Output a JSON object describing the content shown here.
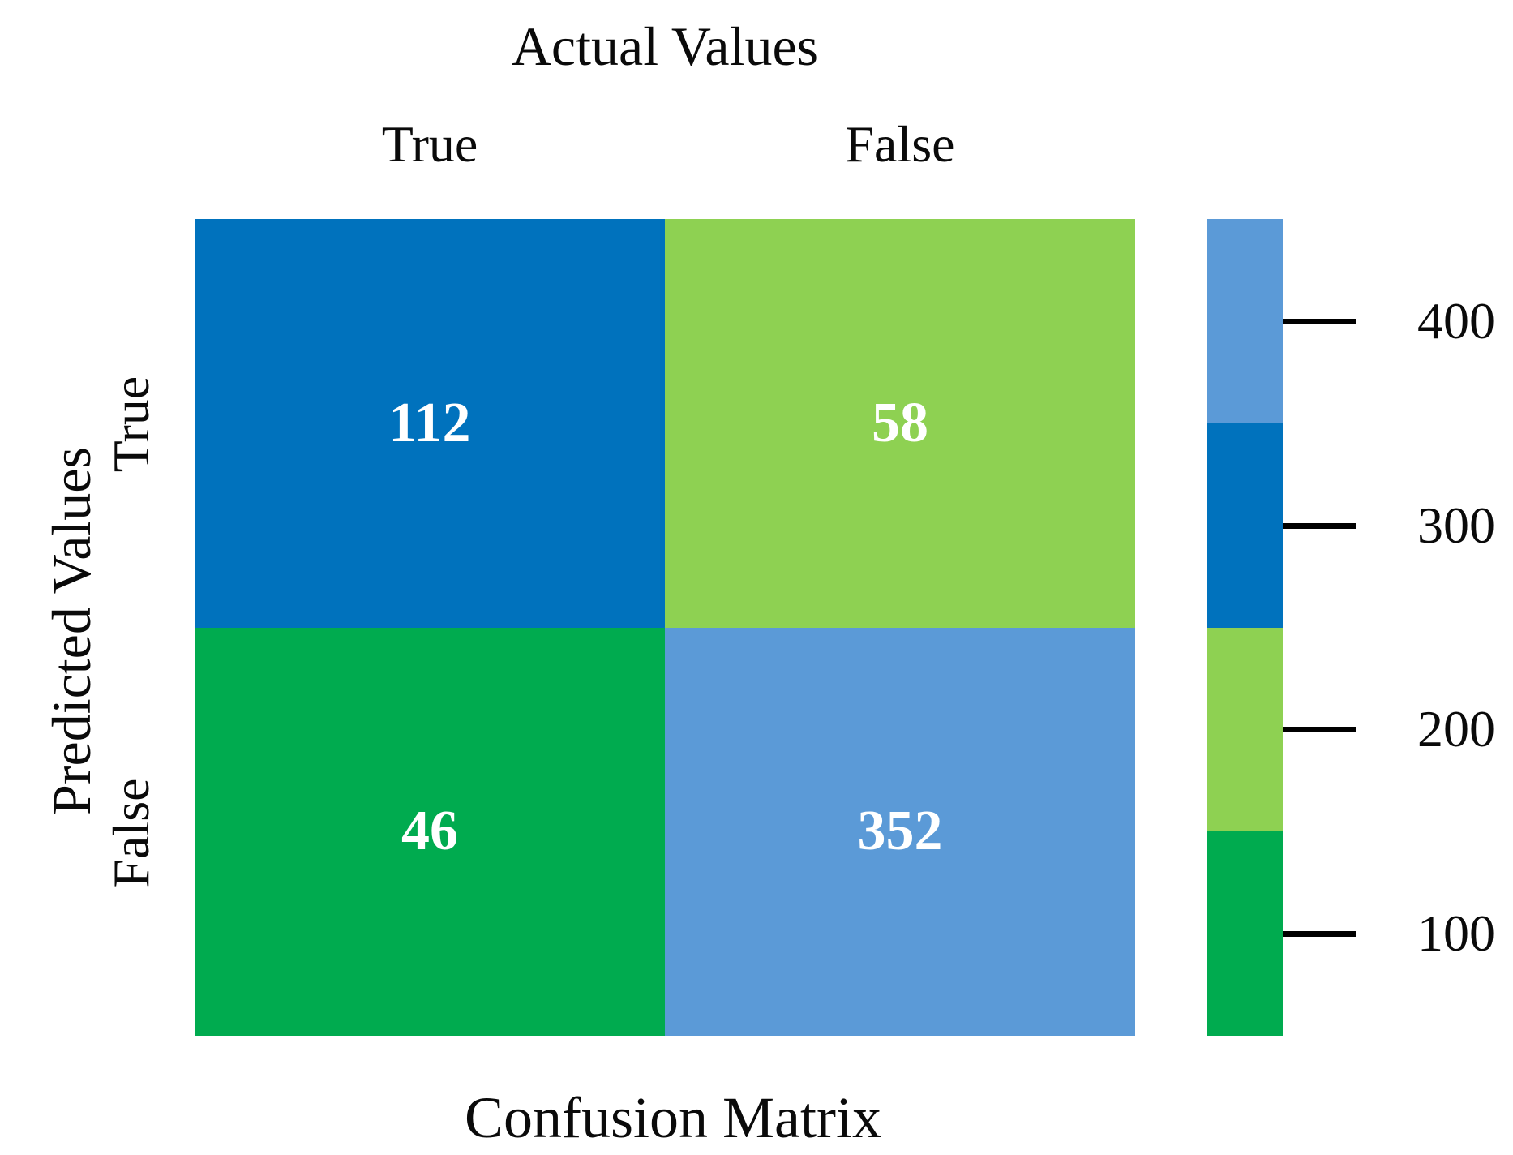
{
  "figure": {
    "top_axis_title": "Actual Values",
    "left_axis_title": "Predicted Values",
    "bottom_caption": "Confusion Matrix"
  },
  "chart_data": {
    "type": "heatmap",
    "title": "Confusion Matrix",
    "x_axis_label": "Actual Values",
    "y_axis_label": "Predicted Values",
    "columns": [
      "True",
      "False"
    ],
    "rows": [
      "True",
      "False"
    ],
    "values": [
      [
        112,
        58
      ],
      [
        46,
        352
      ]
    ],
    "cells": [
      {
        "row": "True",
        "col": "True",
        "value": "112",
        "color": "#0072bd"
      },
      {
        "row": "True",
        "col": "False",
        "value": "58",
        "color": "#8ed152"
      },
      {
        "row": "False",
        "col": "True",
        "value": "46",
        "color": "#00ab4f"
      },
      {
        "row": "False",
        "col": "False",
        "value": "352",
        "color": "#5b9ad7"
      }
    ],
    "value_text_color": "#ffffff",
    "colorbar": {
      "position": "right",
      "range": [
        50,
        450
      ],
      "segments": [
        {
          "color": "#5b9ad7",
          "span": [
            350,
            450
          ],
          "tick": "400"
        },
        {
          "color": "#0072bd",
          "span": [
            250,
            350
          ],
          "tick": "300"
        },
        {
          "color": "#8ed152",
          "span": [
            150,
            250
          ],
          "tick": "200"
        },
        {
          "color": "#00ab4f",
          "span": [
            50,
            150
          ],
          "tick": "100"
        }
      ],
      "tick_labels": [
        "400",
        "300",
        "200",
        "100"
      ]
    },
    "grid": false,
    "legend": false
  }
}
